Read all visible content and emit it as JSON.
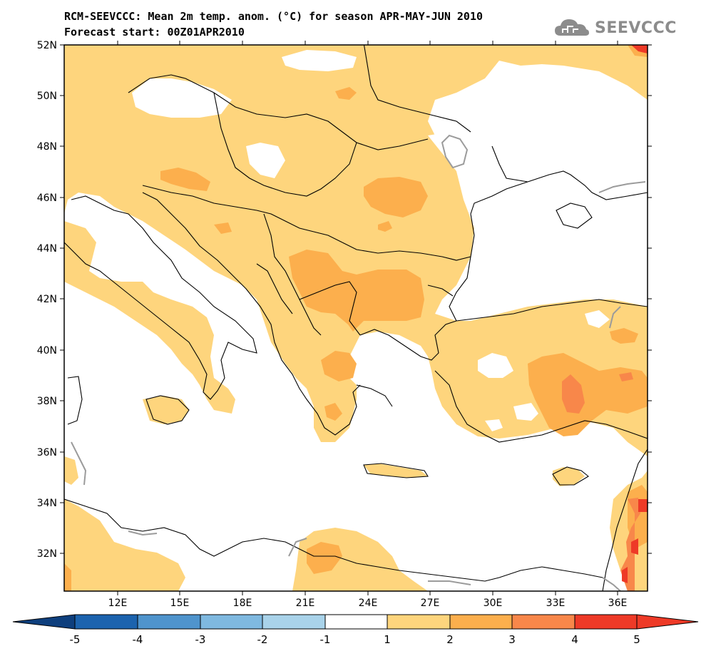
{
  "header": {
    "title_line1": "RCM-SEEVCCC: Mean 2m temp. anom. (°C) for season APR-MAY-JUN 2010",
    "title_line2": "Forecast start: 00Z01APR2010",
    "logo_text": "SEEVCCC"
  },
  "map": {
    "region": "South-East Europe / Eastern Mediterranean",
    "lon_range": [
      9.0,
      37.0
    ],
    "lat_range": [
      30.6,
      52.0
    ],
    "lat_ticks": [
      "52N",
      "50N",
      "48N",
      "46N",
      "44N",
      "42N",
      "40N",
      "38N",
      "36N",
      "34N",
      "32N"
    ],
    "lon_ticks": [
      "12E",
      "15E",
      "18E",
      "21E",
      "24E",
      "27E",
      "30E",
      "33E",
      "36E"
    ],
    "colors": {
      "anom_1_2": "#fed57d",
      "anom_2_3": "#fcaf4d",
      "anom_3_4": "#f8874a",
      "anom_4_5": "#ee3a27",
      "land_border": "#000000",
      "lake": "#9b9b9b"
    }
  },
  "colorbar": {
    "ticks": [
      "-5",
      "-4",
      "-3",
      "-2",
      "-1",
      "1",
      "2",
      "3",
      "4",
      "5"
    ],
    "segments": [
      {
        "color": "#0e3f7d"
      },
      {
        "color": "#1c63ae"
      },
      {
        "color": "#4f94cd"
      },
      {
        "color": "#7fb9e0"
      },
      {
        "color": "#a9d3ea"
      },
      {
        "color": "#ffffff"
      },
      {
        "color": "#fed57d"
      },
      {
        "color": "#fcaf4d"
      },
      {
        "color": "#f8874a"
      },
      {
        "color": "#ee3a27"
      }
    ]
  }
}
